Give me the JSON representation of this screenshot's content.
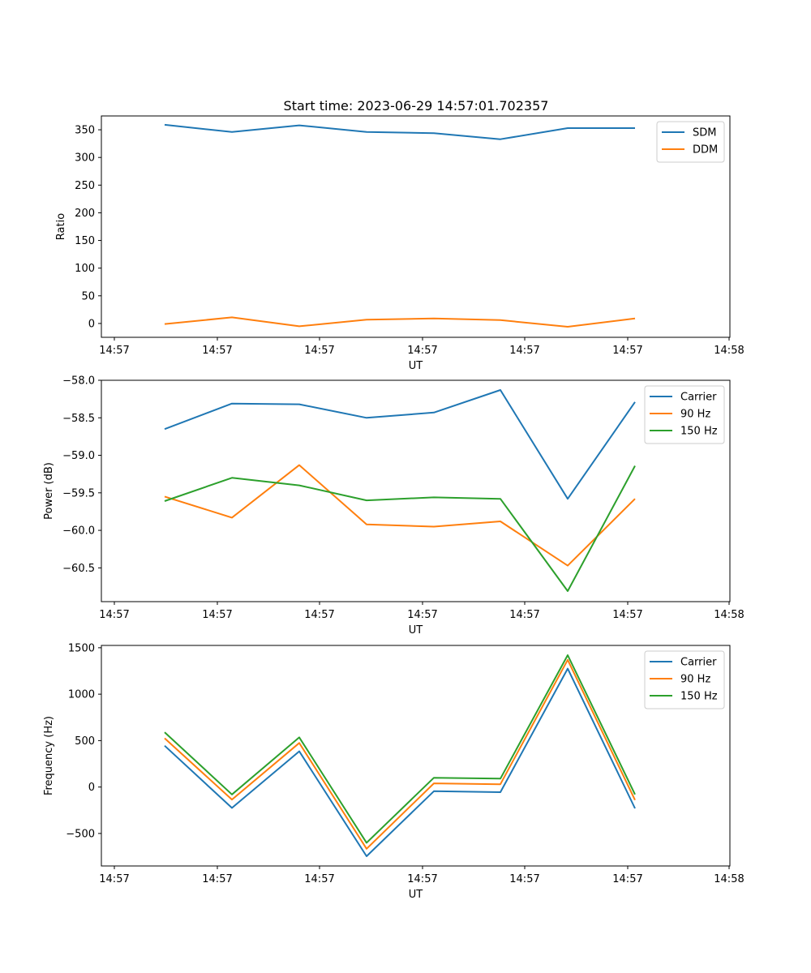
{
  "figure": {
    "title": "Start time: 2023-06-29 14:57:01.702357",
    "colors": {
      "blue": "#1f77b4",
      "orange": "#ff7f0e",
      "green": "#2ca02c"
    }
  },
  "chart_data": [
    {
      "type": "line",
      "ylabel": "Ratio",
      "xlabel": "UT",
      "x_tick_labels": [
        "14:57",
        "14:57",
        "14:57",
        "14:57",
        "14:57",
        "14:57",
        "14:58"
      ],
      "y_ticks": [
        0,
        50,
        100,
        150,
        200,
        250,
        300,
        350
      ],
      "ylim": [
        -25,
        375
      ],
      "legend_position": "top-right",
      "series": [
        {
          "name": "SDM",
          "color": "#1f77b4",
          "values": [
            359,
            346,
            358,
            346,
            344,
            333,
            353,
            353
          ]
        },
        {
          "name": "DDM",
          "color": "#ff7f0e",
          "values": [
            -1,
            11,
            -5,
            7,
            9,
            6,
            -6,
            9
          ]
        }
      ]
    },
    {
      "type": "line",
      "ylabel": "Power (dB)",
      "xlabel": "UT",
      "x_tick_labels": [
        "14:57",
        "14:57",
        "14:57",
        "14:57",
        "14:57",
        "14:57",
        "14:58"
      ],
      "y_ticks": [
        -58.0,
        -58.5,
        -59.0,
        -59.5,
        -60.0,
        -60.5
      ],
      "ylim": [
        -60.95,
        -58.0
      ],
      "legend_position": "top-right",
      "series": [
        {
          "name": "Carrier",
          "color": "#1f77b4",
          "values": [
            -58.65,
            -58.31,
            -58.32,
            -58.5,
            -58.43,
            -58.13,
            -59.58,
            -58.29
          ]
        },
        {
          "name": "90 Hz",
          "color": "#ff7f0e",
          "values": [
            -59.55,
            -59.83,
            -59.13,
            -59.92,
            -59.95,
            -59.88,
            -60.47,
            -59.58
          ]
        },
        {
          "name": "150 Hz",
          "color": "#2ca02c",
          "values": [
            -59.61,
            -59.3,
            -59.4,
            -59.6,
            -59.56,
            -59.58,
            -60.81,
            -59.14
          ]
        }
      ]
    },
    {
      "type": "line",
      "ylabel": "Frequency (Hz)",
      "xlabel": "UT",
      "x_tick_labels": [
        "14:57",
        "14:57",
        "14:57",
        "14:57",
        "14:57",
        "14:57",
        "14:58"
      ],
      "y_ticks": [
        -500,
        0,
        500,
        1000,
        1500
      ],
      "ylim": [
        -850,
        1525
      ],
      "legend_position": "top-right",
      "series": [
        {
          "name": "Carrier",
          "color": "#1f77b4",
          "values": [
            445,
            -225,
            385,
            -745,
            -45,
            -55,
            1275,
            -230
          ]
        },
        {
          "name": "90 Hz",
          "color": "#ff7f0e",
          "values": [
            525,
            -135,
            475,
            -665,
            40,
            30,
            1370,
            -140
          ]
        },
        {
          "name": "150 Hz",
          "color": "#2ca02c",
          "values": [
            590,
            -80,
            535,
            -600,
            100,
            90,
            1420,
            -80
          ]
        }
      ]
    }
  ]
}
